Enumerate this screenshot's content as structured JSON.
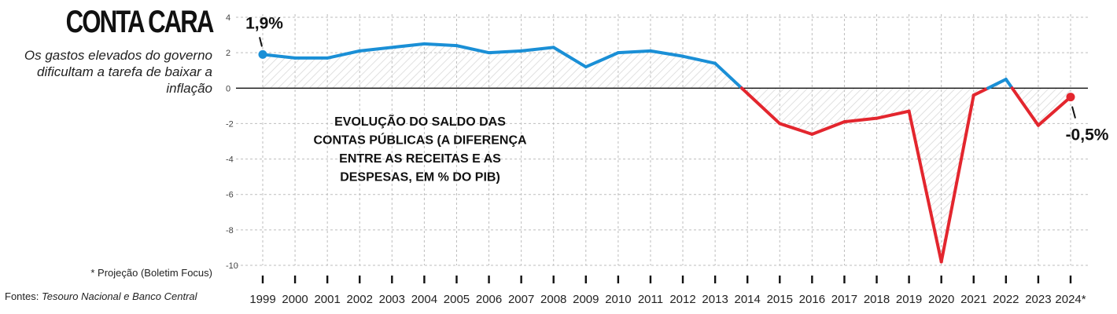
{
  "header": {
    "title": "CONTA CARA",
    "subtitle": "Os gastos elevados do governo dificultam a tarefa de baixar a inflação"
  },
  "footer": {
    "footnote": "* Projeção (Boletim Focus)",
    "sources_label": "Fontes:",
    "sources_text": "Tesouro Nacional e Banco Central"
  },
  "colors": {
    "positive": "#1a8fd6",
    "negative": "#e3262e",
    "baseline": "#111111",
    "grid": "#bdbdbd",
    "hatch": "#d9d9d9"
  },
  "chart_data": {
    "type": "line",
    "title": "EVOLUÇÃO DO SALDO DAS CONTAS PÚBLICAS (A DIFERENÇA ENTRE AS RECEITAS E AS DESPESAS, EM % DO PIB)",
    "title_lines": [
      "EVOLUÇÃO DO SALDO DAS",
      "CONTAS PÚBLICAS (A DIFERENÇA",
      "ENTRE AS RECEITAS E AS",
      "DESPESAS, EM % DO PIB)"
    ],
    "x": [
      "1999",
      "2000",
      "2001",
      "2002",
      "2003",
      "2004",
      "2005",
      "2006",
      "2007",
      "2008",
      "2009",
      "2010",
      "2011",
      "2012",
      "2013",
      "2014",
      "2015",
      "2016",
      "2017",
      "2018",
      "2019",
      "2020",
      "2021",
      "2022",
      "2023",
      "2024*"
    ],
    "values": [
      1.9,
      1.7,
      1.7,
      2.1,
      2.3,
      2.5,
      2.4,
      2.0,
      2.1,
      2.3,
      1.2,
      2.0,
      2.1,
      1.8,
      1.4,
      -0.3,
      -2.0,
      -2.6,
      -1.9,
      -1.7,
      -1.3,
      -9.8,
      -0.4,
      0.5,
      -2.1,
      -0.5
    ],
    "ylim": [
      -10,
      4
    ],
    "yticks": [
      "4",
      "2",
      "0",
      "-2",
      "-4",
      "-6",
      "-8",
      "-10"
    ],
    "grid": true,
    "callouts": [
      {
        "label": "1,9%",
        "index": 0
      },
      {
        "label": "-0,5%",
        "index": 25
      }
    ]
  }
}
